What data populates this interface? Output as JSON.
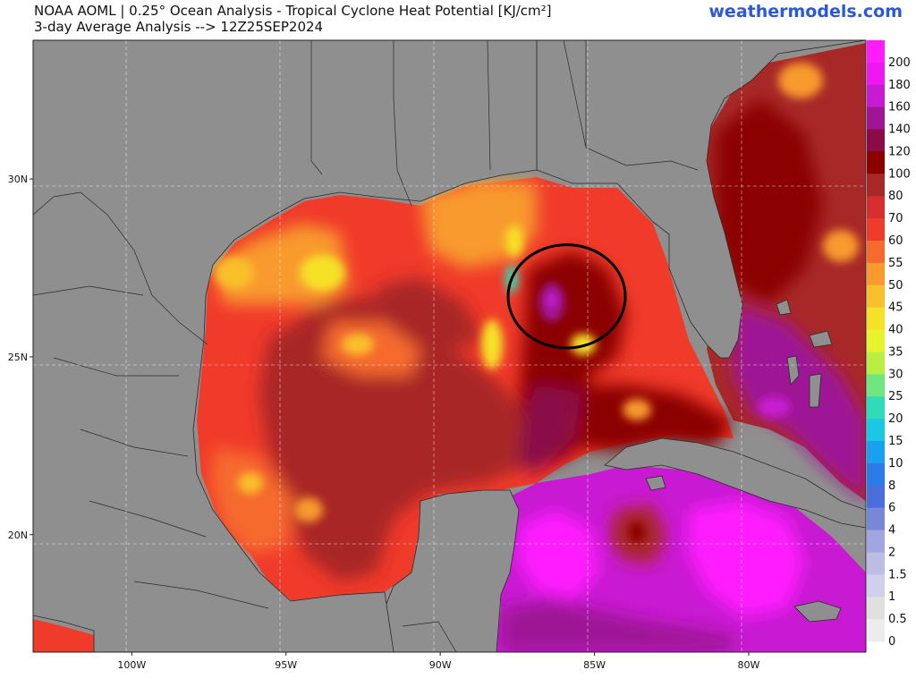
{
  "header": {
    "title_line1": "NOAA AOML | 0.25° Ocean Analysis - Tropical Cyclone Heat Potential [KJ/cm²]",
    "title_line2": "3-day Average Analysis --> 12Z25SEP2024",
    "brand": "weathermodels.com"
  },
  "map": {
    "lon_range": [
      -103.2,
      -76.2
    ],
    "lat_range": [
      16.7,
      33.9
    ],
    "lon_ticks": [
      -100,
      -95,
      -90,
      -85,
      -80
    ],
    "lon_tick_labels": [
      "100W",
      "95W",
      "90W",
      "85W",
      "80W"
    ],
    "lat_ticks": [
      20,
      25,
      30
    ],
    "lat_tick_labels": [
      "20N",
      "25N",
      "30N"
    ],
    "grid": true,
    "land_color": "#8f8f8f",
    "highlight_circle": {
      "center_lon": -85.9,
      "center_lat": 26.7,
      "radius_deg_lon": 1.9,
      "radius_deg_lat": 1.45
    }
  },
  "colorbar": {
    "levels": [
      {
        "label": "200",
        "color": "#ff1cff"
      },
      {
        "label": "180",
        "color": "#f017f0"
      },
      {
        "label": "160",
        "color": "#c81ad2"
      },
      {
        "label": "140",
        "color": "#9e1596"
      },
      {
        "label": "120",
        "color": "#8a0a4a"
      },
      {
        "label": "100",
        "color": "#8b0000"
      },
      {
        "label": "80",
        "color": "#a82828"
      },
      {
        "label": "70",
        "color": "#d42e2e"
      },
      {
        "label": "60",
        "color": "#f03a2a"
      },
      {
        "label": "55",
        "color": "#f66a2e"
      },
      {
        "label": "50",
        "color": "#f89a2e"
      },
      {
        "label": "45",
        "color": "#f9c02c"
      },
      {
        "label": "40",
        "color": "#f7e128"
      },
      {
        "label": "35",
        "color": "#e8f42a"
      },
      {
        "label": "30",
        "color": "#b8ef40"
      },
      {
        "label": "25",
        "color": "#70e680"
      },
      {
        "label": "20",
        "color": "#30dbb8"
      },
      {
        "label": "15",
        "color": "#1ac8e6"
      },
      {
        "label": "10",
        "color": "#1aa0f0"
      },
      {
        "label": "8",
        "color": "#2a7de8"
      },
      {
        "label": "6",
        "color": "#4a6fdc"
      },
      {
        "label": "4",
        "color": "#7a86d8"
      },
      {
        "label": "2",
        "color": "#a2a6e0"
      },
      {
        "label": "1.5",
        "color": "#bcbce6"
      },
      {
        "label": "1",
        "color": "#d0d0ec"
      },
      {
        "label": "0.5",
        "color": "#e0e0e0"
      },
      {
        "label": "0",
        "color": "#ececec"
      }
    ]
  }
}
